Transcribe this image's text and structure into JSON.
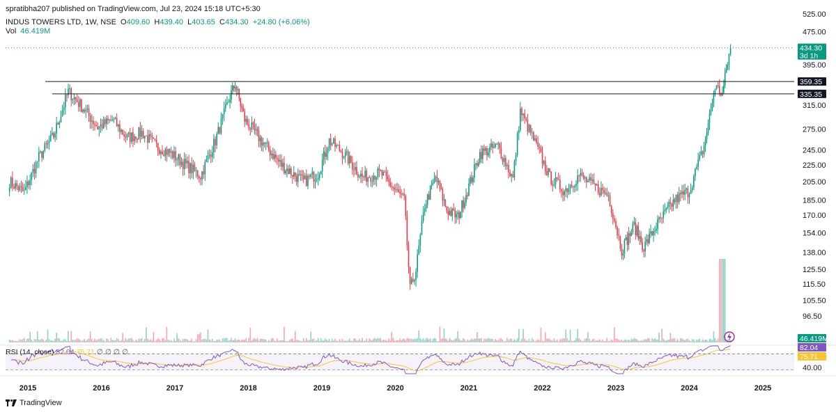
{
  "header": {
    "published": "spratibha207 published on TradingView.com, Jul 23, 2024 15:18 UTC+5:30",
    "symbol": "INDUS TOWERS LTD, 1W, NSE",
    "open_label": "O",
    "open": "409.60",
    "high_label": "H",
    "high": "439.40",
    "low_label": "L",
    "low": "403.65",
    "close_label": "C",
    "close": "434.30",
    "change": "+24.80 (+6.06%)",
    "vol_label": "Vol",
    "vol": "46.419M"
  },
  "rsi": {
    "label": "RSI (14, close)",
    "value": "82.04",
    "ma": "75.71",
    "extras": "∅ ∅ ∅ ∅"
  },
  "footer": {
    "brand": "TradingView"
  },
  "colors": {
    "up": "#089981",
    "down": "#f23645",
    "rsi": "#7e57c2",
    "rsi_ma": "#f7c531",
    "band": "#7e57c2"
  },
  "chart_data": {
    "type": "candlestick",
    "symbol": "INDUS TOWERS LTD",
    "interval": "1W",
    "scale": "log",
    "y_ticks": [
      525.0,
      475.0,
      395.0,
      315.0,
      275.0,
      245.0,
      225.0,
      205.0,
      185.0,
      170.0,
      154.0,
      138.0,
      125.5,
      115.5,
      105.5,
      96.5
    ],
    "x_ticks": [
      "2015",
      "2016",
      "2017",
      "2018",
      "2019",
      "2020",
      "2021",
      "2022",
      "2023",
      "2024",
      "2025"
    ],
    "horizontal_levels": [
      359.35,
      335.35
    ],
    "last_price": "434.30",
    "last_price_sub": "3d 1h",
    "level_labels": [
      "359.35",
      "335.35"
    ],
    "volume_label": "46.419M",
    "rsi_value_label": "82.04",
    "rsi_ma_label": "75.71",
    "rsi_ticks": [
      "40.00"
    ],
    "rsi_band": [
      30,
      70
    ],
    "anchors": [
      {
        "t": 2014.75,
        "p": 205
      },
      {
        "t": 2014.95,
        "p": 193
      },
      {
        "t": 2015.15,
        "p": 235
      },
      {
        "t": 2015.35,
        "p": 265
      },
      {
        "t": 2015.55,
        "p": 340
      },
      {
        "t": 2015.75,
        "p": 310
      },
      {
        "t": 2015.95,
        "p": 278
      },
      {
        "t": 2016.15,
        "p": 290
      },
      {
        "t": 2016.35,
        "p": 262
      },
      {
        "t": 2016.55,
        "p": 270
      },
      {
        "t": 2016.75,
        "p": 250
      },
      {
        "t": 2016.95,
        "p": 240
      },
      {
        "t": 2017.15,
        "p": 225
      },
      {
        "t": 2017.35,
        "p": 212
      },
      {
        "t": 2017.55,
        "p": 258
      },
      {
        "t": 2017.75,
        "p": 330
      },
      {
        "t": 2017.82,
        "p": 355
      },
      {
        "t": 2017.95,
        "p": 290
      },
      {
        "t": 2018.2,
        "p": 255
      },
      {
        "t": 2018.45,
        "p": 225
      },
      {
        "t": 2018.75,
        "p": 205
      },
      {
        "t": 2018.95,
        "p": 215
      },
      {
        "t": 2019.1,
        "p": 258
      },
      {
        "t": 2019.3,
        "p": 240
      },
      {
        "t": 2019.55,
        "p": 210
      },
      {
        "t": 2019.8,
        "p": 215
      },
      {
        "t": 2019.95,
        "p": 200
      },
      {
        "t": 2020.12,
        "p": 185
      },
      {
        "t": 2020.2,
        "p": 112
      },
      {
        "t": 2020.28,
        "p": 125
      },
      {
        "t": 2020.4,
        "p": 180
      },
      {
        "t": 2020.55,
        "p": 210
      },
      {
        "t": 2020.7,
        "p": 175
      },
      {
        "t": 2020.85,
        "p": 168
      },
      {
        "t": 2021.0,
        "p": 200
      },
      {
        "t": 2021.15,
        "p": 240
      },
      {
        "t": 2021.4,
        "p": 250
      },
      {
        "t": 2021.6,
        "p": 208
      },
      {
        "t": 2021.7,
        "p": 305
      },
      {
        "t": 2021.9,
        "p": 255
      },
      {
        "t": 2022.1,
        "p": 210
      },
      {
        "t": 2022.3,
        "p": 195
      },
      {
        "t": 2022.5,
        "p": 212
      },
      {
        "t": 2022.7,
        "p": 200
      },
      {
        "t": 2022.9,
        "p": 190
      },
      {
        "t": 2023.08,
        "p": 140
      },
      {
        "t": 2023.25,
        "p": 160
      },
      {
        "t": 2023.38,
        "p": 142
      },
      {
        "t": 2023.55,
        "p": 160
      },
      {
        "t": 2023.8,
        "p": 185
      },
      {
        "t": 2024.0,
        "p": 195
      },
      {
        "t": 2024.2,
        "p": 250
      },
      {
        "t": 2024.35,
        "p": 350
      },
      {
        "t": 2024.45,
        "p": 335
      },
      {
        "t": 2024.52,
        "p": 400
      },
      {
        "t": 2024.56,
        "p": 434
      }
    ]
  }
}
